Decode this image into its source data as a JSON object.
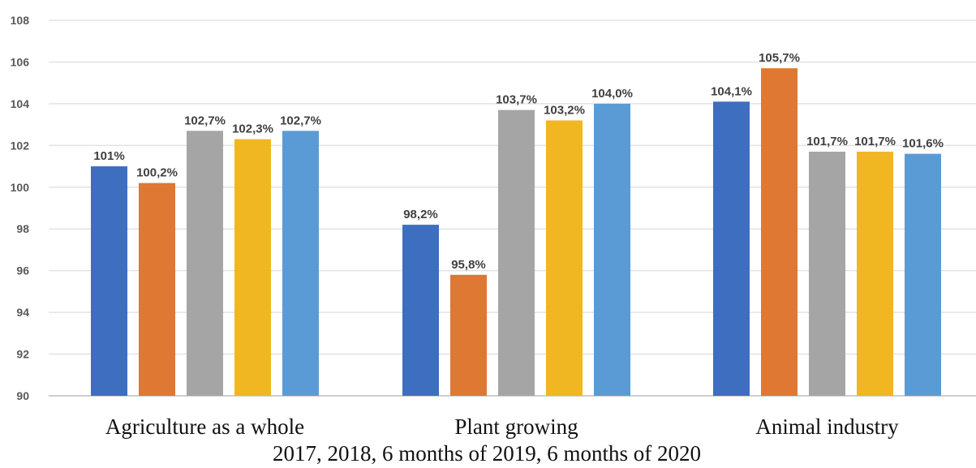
{
  "chart_data": {
    "type": "bar",
    "categories": [
      "Agriculture as a whole",
      "Plant growing",
      "Animal industry"
    ],
    "xlabel": "2017, 2018, 6 months of 2019, 6 months of 2020",
    "ylabel": "",
    "ylim": [
      90,
      108
    ],
    "yticks": [
      "90",
      "92",
      "94",
      "96",
      "98",
      "100",
      "102",
      "104",
      "106",
      "108"
    ],
    "grid": true,
    "series": [
      {
        "color": "#3E6EBF",
        "values": [
          101.0,
          98.2,
          104.1
        ],
        "labels": [
          "101%",
          "98,2%",
          "104,1%"
        ]
      },
      {
        "color": "#DE7833",
        "values": [
          100.2,
          95.8,
          105.7
        ],
        "labels": [
          "100,2%",
          "95,8%",
          "105,7%"
        ]
      },
      {
        "color": "#A5A5A5",
        "values": [
          102.7,
          103.7,
          101.7
        ],
        "labels": [
          "102,7%",
          "103,7%",
          "101,7%"
        ]
      },
      {
        "color": "#F0B722",
        "values": [
          102.3,
          103.2,
          101.7
        ],
        "labels": [
          "102,3%",
          "103,2%",
          "101,7%"
        ]
      },
      {
        "color": "#5B9BD5",
        "values": [
          102.7,
          104.0,
          101.6
        ],
        "labels": [
          "102,7%",
          "104,0%",
          "101,6%"
        ]
      }
    ]
  }
}
